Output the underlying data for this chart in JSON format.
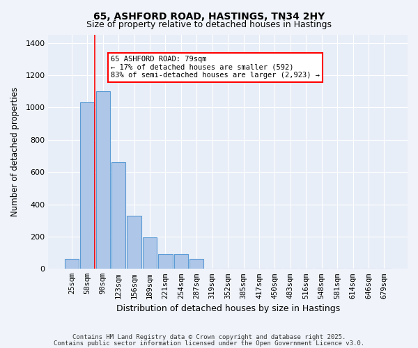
{
  "title1": "65, ASHFORD ROAD, HASTINGS, TN34 2HY",
  "title2": "Size of property relative to detached houses in Hastings",
  "xlabel": "Distribution of detached houses by size in Hastings",
  "ylabel": "Number of detached properties",
  "bar_color": "#aec6e8",
  "bar_edge_color": "#5b9bd5",
  "background_color": "#e8eef7",
  "grid_color": "#ffffff",
  "categories": [
    "25sqm",
    "58sqm",
    "90sqm",
    "123sqm",
    "156sqm",
    "189sqm",
    "221sqm",
    "254sqm",
    "287sqm",
    "319sqm",
    "352sqm",
    "385sqm",
    "417sqm",
    "450sqm",
    "483sqm",
    "516sqm",
    "548sqm",
    "581sqm",
    "614sqm",
    "646sqm",
    "679sqm"
  ],
  "values": [
    60,
    1030,
    1100,
    660,
    330,
    195,
    90,
    90,
    60,
    0,
    0,
    0,
    0,
    0,
    0,
    0,
    0,
    0,
    0,
    0,
    0
  ],
  "ylim": [
    0,
    1450
  ],
  "yticks": [
    0,
    200,
    400,
    600,
    800,
    1000,
    1200,
    1400
  ],
  "red_line_x": 1,
  "annotation_title": "65 ASHFORD ROAD: 79sqm",
  "annotation_line1": "← 17% of detached houses are smaller (592)",
  "annotation_line2": "83% of semi-detached houses are larger (2,923) →",
  "footer1": "Contains HM Land Registry data © Crown copyright and database right 2025.",
  "footer2": "Contains public sector information licensed under the Open Government Licence v3.0."
}
